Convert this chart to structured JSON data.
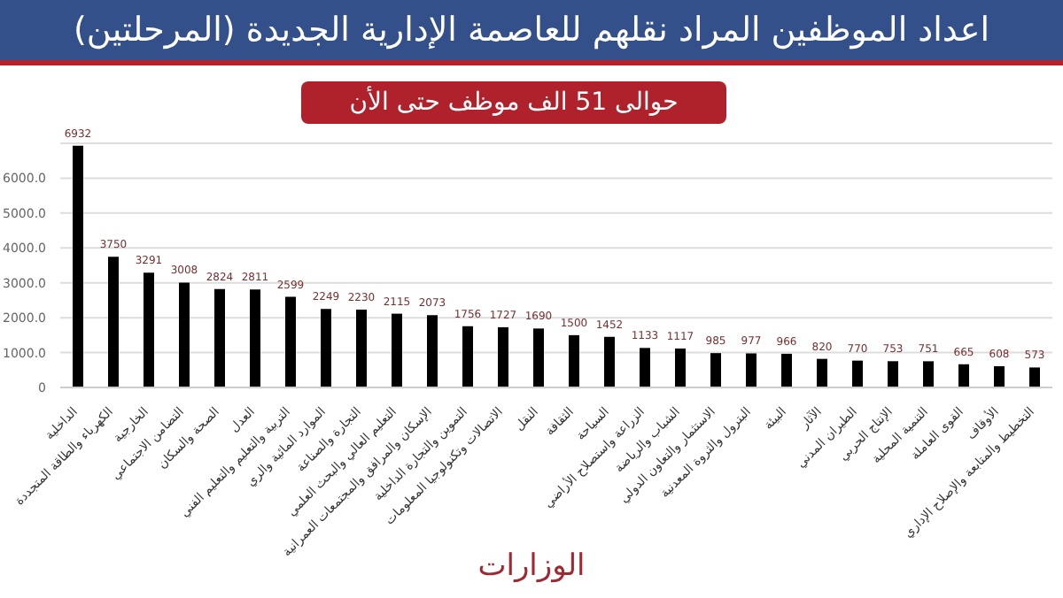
{
  "chart_data": {
    "type": "bar",
    "title": "اعداد الموظفين المراد نقلهم للعاصمة الإدارية الجديدة (المرحلتين)",
    "subtitle": "حوالى 51 الف موظف حتى الأن",
    "xlabel": "الوزارات",
    "categories": [
      "الداخلية",
      "الكهرباء والطاقة المتجددة",
      "الخارجية",
      "التضامن الاجتماعي",
      "الصحة والسكان",
      "العدل",
      "التربية والتعليم والتعليم الفني",
      "الموارد المائية والري",
      "التجارة والصناعة",
      "التعليم العالي والبحث العلمي",
      "الإسكان والمرافق والمجتمعات العمرانية",
      "التموين والتجارة الداخلية",
      "الاتصالات وتكنولوجيا المعلومات",
      "النقل",
      "الثقافة",
      "السياحة",
      "الزراعة واستصلاح الأراضي",
      "الشباب والرياضة",
      "الاستثمار والتعاون الدولي",
      "البترول والثروة المعدنية",
      "البيئة",
      "الآثار",
      "الطيران المدني",
      "الإنتاج الحربي",
      "التنمية المحلية",
      "القوى العاملة",
      "الأوقاف",
      "التخطيط والمتابعة والإصلاح الإداري"
    ],
    "values": [
      6932,
      3750,
      3291,
      3008,
      2824,
      2811,
      2599,
      2249,
      2230,
      2115,
      2073,
      1756,
      1727,
      1690,
      1500,
      1452,
      1133,
      1117,
      985,
      977,
      966,
      820,
      770,
      753,
      751,
      665,
      608,
      573
    ],
    "color": "#000000",
    "data_labels": true,
    "ylim": [
      0,
      7000
    ],
    "yticks": [
      0,
      {
        "value": 1000,
        "label": "1000.0"
      },
      {
        "value": 2000,
        "label": "2000.0"
      },
      {
        "value": 3000,
        "label": "3000.0"
      },
      {
        "value": 4000,
        "label": "4000.0"
      },
      {
        "value": 5000,
        "label": "5000.0"
      },
      {
        "value": 6000,
        "label": "6000.0"
      }
    ],
    "grid": "y",
    "legend": false
  }
}
